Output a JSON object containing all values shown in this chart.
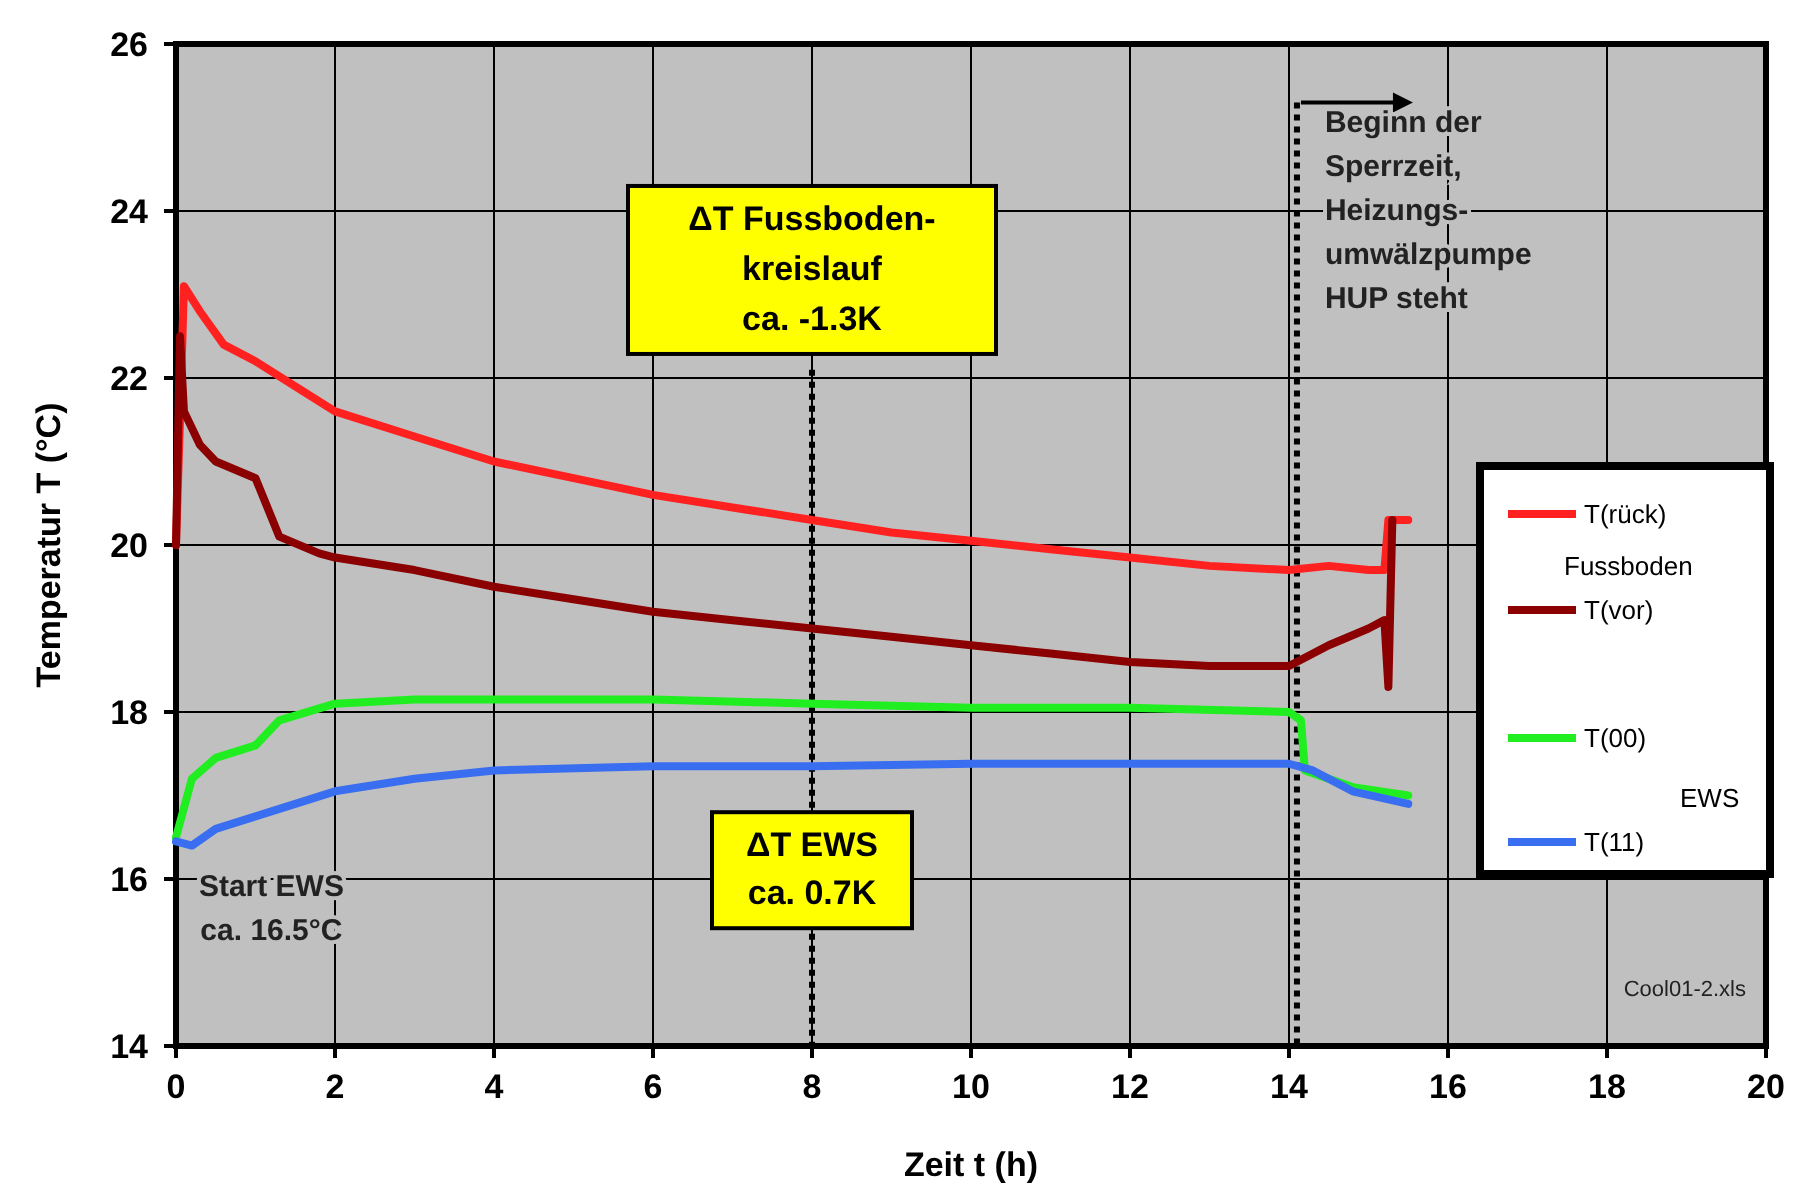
{
  "chart_data": {
    "type": "line",
    "xlabel": "Zeit t (h)",
    "ylabel": "Temperatur T (°C)",
    "xlim": [
      0,
      20
    ],
    "xticks": [
      0,
      2,
      4,
      6,
      8,
      10,
      12,
      14,
      16,
      18,
      20
    ],
    "ylim": [
      14,
      26
    ],
    "yticks": [
      14,
      16,
      18,
      20,
      22,
      24,
      26
    ],
    "grid": true,
    "legend": "right",
    "marker": "none",
    "line_style": "solid",
    "series": [
      {
        "name": "T(rück)",
        "color": "#ff2020",
        "x": [
          0,
          0.05,
          0.1,
          0.3,
          0.6,
          1,
          1.5,
          2,
          3,
          4,
          5,
          6,
          7,
          8,
          9,
          10,
          11,
          12,
          13,
          14,
          14.5,
          15,
          15.2,
          15.25,
          15.5
        ],
        "values": [
          20,
          21.5,
          23.1,
          22.8,
          22.4,
          22.2,
          21.9,
          21.6,
          21.3,
          21,
          20.8,
          20.6,
          20.45,
          20.3,
          20.15,
          20.05,
          19.95,
          19.85,
          19.75,
          19.7,
          19.75,
          19.7,
          19.7,
          20.3,
          20.3
        ]
      },
      {
        "name": "T(vor)",
        "color": "#8b0000",
        "x": [
          0,
          0.05,
          0.1,
          0.3,
          0.5,
          1,
          1.3,
          1.8,
          2,
          3,
          4,
          5,
          6,
          7,
          8,
          9,
          10,
          11,
          12,
          13,
          14,
          14.5,
          15,
          15.2,
          15.25,
          15.3
        ],
        "values": [
          20,
          22.5,
          21.6,
          21.2,
          21,
          20.8,
          20.1,
          19.9,
          19.85,
          19.7,
          19.5,
          19.35,
          19.2,
          19.1,
          19,
          18.9,
          18.8,
          18.7,
          18.6,
          18.55,
          18.55,
          18.8,
          19,
          19.1,
          18.3,
          20.3
        ]
      },
      {
        "name": "T(00)",
        "color": "#20ee20",
        "x": [
          0,
          0.2,
          0.5,
          1,
          1.3,
          2,
          3,
          4,
          6,
          8,
          10,
          12,
          14,
          14.15,
          14.2,
          14.8,
          15.5
        ],
        "values": [
          16.5,
          17.2,
          17.45,
          17.6,
          17.9,
          18.1,
          18.15,
          18.15,
          18.15,
          18.1,
          18.05,
          18.05,
          18,
          17.9,
          17.3,
          17.1,
          17
        ]
      },
      {
        "name": "T(11)",
        "color": "#3a6ef0",
        "x": [
          0,
          0.2,
          0.5,
          1,
          1.5,
          2,
          3,
          4,
          6,
          8,
          10,
          12,
          14,
          14.3,
          14.8,
          15.5
        ],
        "values": [
          16.45,
          16.4,
          16.6,
          16.75,
          16.9,
          17.05,
          17.2,
          17.3,
          17.35,
          17.35,
          17.38,
          17.38,
          17.38,
          17.3,
          17.05,
          16.9
        ]
      }
    ],
    "ref_lines": [
      {
        "axis": "x",
        "value": 8,
        "line_style": "dotted"
      },
      {
        "axis": "x",
        "value": 14.1,
        "line_style": "dotted"
      }
    ],
    "annotations": [
      "ΔT Fussboden-\nkreislauf\nca. -1.3K",
      "ΔT EWS\nca. 0.7K",
      "Beginn der\nSperrzeit,\nHeizungs-\numwälzpumpe\nHUP steht",
      "Start EWS\nca. 16.5°C",
      "Cool01-2.xls",
      "Fussboden",
      "EWS"
    ]
  }
}
